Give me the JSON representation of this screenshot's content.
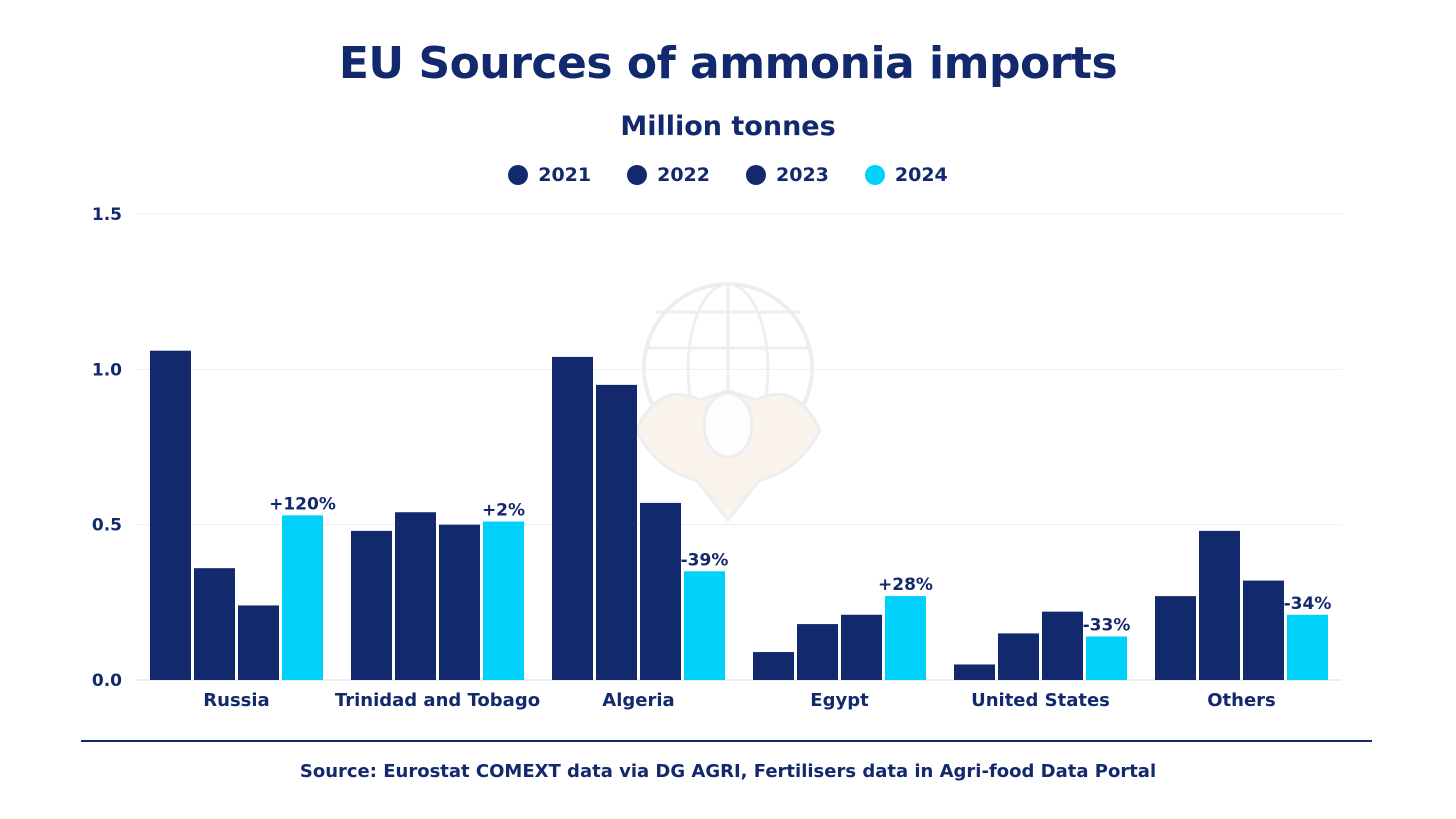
{
  "chart_data": {
    "type": "bar",
    "title": "EU Sources of ammonia imports",
    "subtitle": "Million tonnes",
    "xlabel": "",
    "ylabel": "",
    "ylim": [
      0,
      1.5
    ],
    "yticks": [
      0.0,
      0.5,
      1.0,
      1.5
    ],
    "ytick_labels": [
      "0.0",
      "0.5",
      "1.0",
      "1.5"
    ],
    "grid": true,
    "legend_position": "top-center",
    "categories": [
      "Russia",
      "Trinidad and Tobago",
      "Algeria",
      "Egypt",
      "United States",
      "Others"
    ],
    "series": [
      {
        "name": "2021",
        "color": "#13296e",
        "values": [
          1.06,
          0.48,
          1.04,
          0.09,
          0.05,
          0.27
        ]
      },
      {
        "name": "2022",
        "color": "#13296e",
        "values": [
          0.36,
          0.54,
          0.95,
          0.18,
          0.15,
          0.48
        ]
      },
      {
        "name": "2023",
        "color": "#13296e",
        "values": [
          0.24,
          0.5,
          0.57,
          0.21,
          0.22,
          0.32
        ]
      },
      {
        "name": "2024",
        "color": "#00d1fb",
        "values": [
          0.53,
          0.51,
          0.35,
          0.27,
          0.14,
          0.21
        ]
      }
    ],
    "annotations": [
      "+120%",
      "+2%",
      "-39%",
      "+28%",
      "-33%",
      "-34%"
    ]
  },
  "source": "Source: Eurostat COMEXT data via DG AGRI, Fertilisers data in Agri-food Data Portal"
}
